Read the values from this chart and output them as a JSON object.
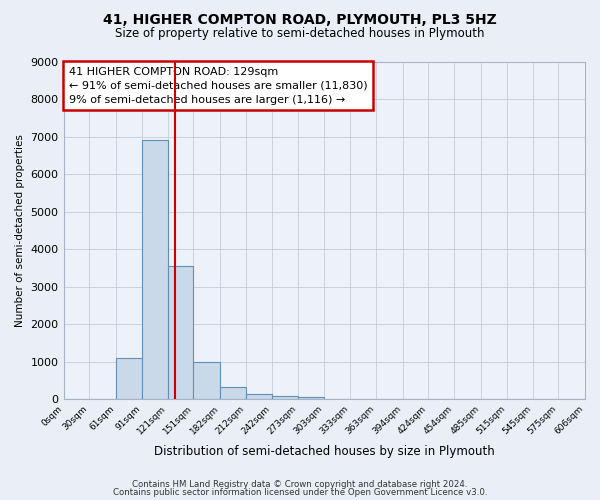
{
  "title": "41, HIGHER COMPTON ROAD, PLYMOUTH, PL3 5HZ",
  "subtitle": "Size of property relative to semi-detached houses in Plymouth",
  "xlabel": "Distribution of semi-detached houses by size in Plymouth",
  "ylabel": "Number of semi-detached properties",
  "bin_edges": [
    0,
    30,
    61,
    91,
    121,
    151,
    182,
    212,
    242,
    273,
    303,
    333,
    363,
    394,
    424,
    454,
    485,
    515,
    545,
    575,
    606
  ],
  "bin_labels": [
    "0sqm",
    "30sqm",
    "61sqm",
    "91sqm",
    "121sqm",
    "151sqm",
    "182sqm",
    "212sqm",
    "242sqm",
    "273sqm",
    "303sqm",
    "333sqm",
    "363sqm",
    "394sqm",
    "424sqm",
    "454sqm",
    "485sqm",
    "515sqm",
    "545sqm",
    "575sqm",
    "606sqm"
  ],
  "counts": [
    0,
    0,
    1100,
    6900,
    3550,
    1000,
    320,
    130,
    90,
    70,
    0,
    0,
    0,
    0,
    0,
    0,
    0,
    0,
    0,
    0
  ],
  "bar_color": "#c9d9ea",
  "bar_edge_color": "#6090b8",
  "vline_x": 129,
  "vline_color": "#cc0000",
  "ylim": [
    0,
    9000
  ],
  "yticks": [
    0,
    1000,
    2000,
    3000,
    4000,
    5000,
    6000,
    7000,
    8000,
    9000
  ],
  "annotation_line1": "41 HIGHER COMPTON ROAD: 129sqm",
  "annotation_line2": "← 91% of semi-detached houses are smaller (11,830)",
  "annotation_line3": "9% of semi-detached houses are larger (1,116) →",
  "annotation_box_color": "#cc0000",
  "footer1": "Contains HM Land Registry data © Crown copyright and database right 2024.",
  "footer2": "Contains public sector information licensed under the Open Government Licence v3.0.",
  "bg_color": "#eaeff7",
  "plot_bg_color": "#edf1f9",
  "grid_color": "#c5cdd8"
}
